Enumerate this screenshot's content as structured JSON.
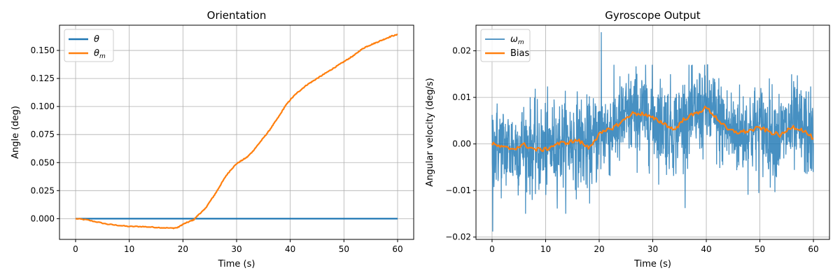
{
  "chart_data": [
    {
      "type": "line",
      "title": "Orientation",
      "xlabel": "Time (s)",
      "ylabel": "Angle (deg)",
      "xlim": [
        -3,
        63
      ],
      "ylim": [
        -0.0185,
        0.1725
      ],
      "xticks": [
        0,
        10,
        20,
        30,
        40,
        50,
        60
      ],
      "yticks": [
        0.0,
        0.025,
        0.05,
        0.075,
        0.1,
        0.125,
        0.15
      ],
      "ytick_labels": [
        "0.000",
        "0.025",
        "0.050",
        "0.075",
        "0.100",
        "0.125",
        "0.150"
      ],
      "grid": true,
      "legend_position": "top-left",
      "series": [
        {
          "name": "θ",
          "color": "#1f77b4",
          "x": [
            0,
            60
          ],
          "y": [
            0,
            0
          ]
        },
        {
          "name": "θm",
          "color": "#ff7f0e",
          "x": [
            0,
            2,
            4,
            6,
            8,
            10,
            12,
            14,
            16,
            18,
            19,
            20,
            21,
            22,
            23,
            24,
            25,
            26,
            27,
            28,
            29,
            30,
            31,
            32,
            33,
            34,
            35,
            36,
            37,
            38,
            39,
            40,
            41,
            42,
            43,
            44,
            45,
            46,
            47,
            48,
            49,
            50,
            51,
            52,
            53,
            54,
            55,
            56,
            57,
            58,
            59,
            60
          ],
          "y": [
            0.0,
            -0.001,
            -0.003,
            -0.005,
            -0.006,
            -0.007,
            -0.007,
            -0.0075,
            -0.008,
            -0.0085,
            -0.008,
            -0.005,
            -0.003,
            -0.001,
            0.004,
            0.008,
            0.015,
            0.022,
            0.03,
            0.038,
            0.044,
            0.049,
            0.052,
            0.055,
            0.06,
            0.066,
            0.072,
            0.078,
            0.085,
            0.092,
            0.1,
            0.106,
            0.111,
            0.115,
            0.119,
            0.122,
            0.125,
            0.128,
            0.131,
            0.134,
            0.137,
            0.14,
            0.143,
            0.146,
            0.15,
            0.153,
            0.155,
            0.157,
            0.159,
            0.161,
            0.163,
            0.164
          ]
        }
      ]
    },
    {
      "type": "line",
      "title": "Gyroscope Output",
      "xlabel": "Time (s)",
      "ylabel": "Angular velocity (deg/s)",
      "xlim": [
        -3,
        63
      ],
      "ylim": [
        -0.0205,
        0.0255
      ],
      "xticks": [
        0,
        10,
        20,
        30,
        40,
        50,
        60
      ],
      "yticks": [
        -0.02,
        -0.01,
        0.0,
        0.01,
        0.02
      ],
      "ytick_labels": [
        "−0.02",
        "−0.01",
        "0.00",
        "0.01",
        "0.02"
      ],
      "grid": true,
      "legend_position": "top-left",
      "series": [
        {
          "name": "ωm",
          "color": "#1f77b4",
          "x_range": [
            0,
            60
          ],
          "noise_band": {
            "lower": -0.012,
            "upper": 0.013,
            "min": -0.0188,
            "max": 0.024
          }
        },
        {
          "name": "Bias",
          "color": "#ff7f0e",
          "x": [
            0,
            2,
            4,
            6,
            8,
            10,
            12,
            14,
            16,
            18,
            20,
            22,
            24,
            26,
            28,
            30,
            32,
            34,
            36,
            38,
            40,
            42,
            44,
            46,
            48,
            50,
            52,
            54,
            56,
            58,
            60
          ],
          "y": [
            0.0,
            -0.0008,
            -0.001,
            -0.0002,
            -0.0012,
            -0.0012,
            0.0,
            0.0003,
            0.0008,
            -0.0008,
            0.002,
            0.0032,
            0.0045,
            0.0065,
            0.0065,
            0.0055,
            0.0045,
            0.003,
            0.0055,
            0.0065,
            0.0078,
            0.0055,
            0.003,
            0.0025,
            0.0028,
            0.0035,
            0.0025,
            0.0018,
            0.0038,
            0.003,
            0.0012
          ]
        }
      ]
    }
  ]
}
